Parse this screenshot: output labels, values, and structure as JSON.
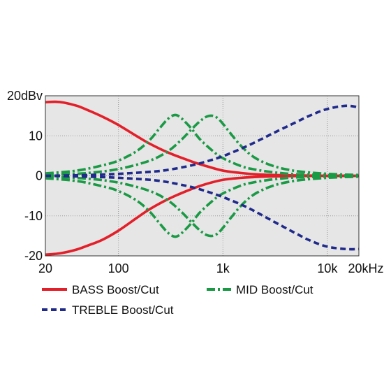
{
  "chart_data": {
    "type": "line",
    "x_scale": "log",
    "xlim": [
      20,
      20000
    ],
    "ylim": [
      -20,
      20
    ],
    "grid": true,
    "plot_background": "#e6e6e6",
    "grid_color": "#9a9a9a",
    "x_ticks": [
      {
        "value": 20,
        "label": "20"
      },
      {
        "value": 100,
        "label": "100"
      },
      {
        "value": 1000,
        "label": "1k"
      },
      {
        "value": 10000,
        "label": "10k"
      },
      {
        "value": 20000,
        "label": "20kHz"
      }
    ],
    "y_ticks": [
      {
        "value": 20,
        "label": "20dBv"
      },
      {
        "value": 10,
        "label": "10"
      },
      {
        "value": 0,
        "label": "0"
      },
      {
        "value": -10,
        "label": "-10"
      },
      {
        "value": -20,
        "label": "-20"
      }
    ],
    "legend_placement": "bottom",
    "series": [
      {
        "name": "BASS Boost/Cut",
        "color": "#e3202a",
        "dash": "solid",
        "curves": [
          {
            "x": [
              20,
              25,
              30,
              40,
              50,
              70,
              100,
              150,
              200,
              300,
              500,
              700,
              1000,
              1500,
              2000,
              3000,
              5000,
              10000,
              20000
            ],
            "y": [
              18.4,
              18.5,
              18.3,
              17.5,
              16.5,
              14.8,
              12.7,
              9.9,
              8.0,
              5.8,
              3.6,
              2.4,
              1.3,
              0.7,
              0.4,
              0.2,
              0.1,
              0.0,
              0.0
            ]
          },
          {
            "x": [
              20,
              25,
              30,
              40,
              50,
              70,
              100,
              150,
              200,
              300,
              500,
              700,
              1000,
              1500,
              2000,
              3000,
              5000,
              10000,
              20000
            ],
            "y": [
              -19.7,
              -19.5,
              -19.2,
              -18.4,
              -17.5,
              -16.0,
              -13.7,
              -10.5,
              -8.3,
              -5.8,
              -3.3,
              -2.0,
              -1.0,
              -0.5,
              -0.3,
              -0.15,
              -0.05,
              0.0,
              0.0
            ]
          }
        ]
      },
      {
        "name": "MID Boost/Cut",
        "color": "#1a9a45",
        "dash": "dashdot",
        "curves": [
          {
            "x": [
              20,
              40,
              70,
              100,
              150,
              200,
              250,
              300,
              350,
              400,
              500,
              600,
              800,
              1000,
              1500,
              2000,
              3000,
              5000,
              10000,
              20000
            ],
            "y": [
              0.6,
              1.3,
              2.6,
              3.8,
              6.2,
              9.0,
              12.0,
              14.3,
              15.2,
              14.4,
              11.8,
              9.2,
              6.2,
              4.4,
              2.4,
              1.6,
              0.9,
              0.4,
              0.2,
              0.0
            ]
          },
          {
            "x": [
              20,
              40,
              70,
              100,
              150,
              200,
              250,
              300,
              350,
              400,
              500,
              600,
              800,
              1000,
              1500,
              2000,
              3000,
              5000,
              10000,
              20000
            ],
            "y": [
              -0.6,
              -1.3,
              -2.6,
              -3.8,
              -6.2,
              -9.0,
              -12.0,
              -14.3,
              -15.2,
              -14.4,
              -11.8,
              -9.2,
              -6.2,
              -4.4,
              -2.4,
              -1.6,
              -0.9,
              -0.4,
              -0.2,
              0.0
            ]
          },
          {
            "x": [
              20,
              50,
              100,
              200,
              300,
              400,
              500,
              600,
              700,
              800,
              900,
              1000,
              1200,
              1500,
              2000,
              3000,
              5000,
              10000,
              20000
            ],
            "y": [
              0.2,
              0.7,
              1.7,
              3.8,
              6.2,
              9.0,
              11.6,
              13.6,
              14.8,
              15.0,
              14.3,
              13.0,
              10.4,
              7.4,
              4.6,
              2.5,
              1.2,
              0.5,
              0.2
            ]
          },
          {
            "x": [
              20,
              50,
              100,
              200,
              300,
              400,
              500,
              600,
              700,
              800,
              900,
              1000,
              1200,
              1500,
              2000,
              3000,
              5000,
              10000,
              20000
            ],
            "y": [
              -0.2,
              -0.7,
              -1.7,
              -3.8,
              -6.2,
              -9.0,
              -11.6,
              -13.6,
              -14.8,
              -15.0,
              -14.3,
              -13.0,
              -10.4,
              -7.4,
              -4.6,
              -2.5,
              -1.2,
              -0.5,
              -0.2
            ]
          }
        ]
      },
      {
        "name": "TREBLE Boost/Cut",
        "color": "#1f2a8a",
        "dash": "dash",
        "curves": [
          {
            "x": [
              20,
              50,
              100,
              200,
              300,
              500,
              700,
              1000,
              1500,
              2000,
              3000,
              5000,
              7000,
              10000,
              15000,
              20000
            ],
            "y": [
              0.0,
              0.2,
              0.5,
              1.0,
              1.5,
              2.6,
              3.6,
              4.9,
              6.8,
              8.3,
              10.6,
              13.4,
              15.2,
              16.7,
              17.5,
              17.1
            ]
          },
          {
            "x": [
              20,
              50,
              100,
              200,
              300,
              500,
              700,
              1000,
              1500,
              2000,
              3000,
              5000,
              7000,
              10000,
              15000,
              20000
            ],
            "y": [
              0.0,
              -0.2,
              -0.5,
              -1.0,
              -1.6,
              -2.8,
              -3.9,
              -5.3,
              -7.2,
              -8.8,
              -11.3,
              -14.4,
              -16.3,
              -17.7,
              -18.3,
              -18.3
            ]
          }
        ]
      }
    ]
  }
}
